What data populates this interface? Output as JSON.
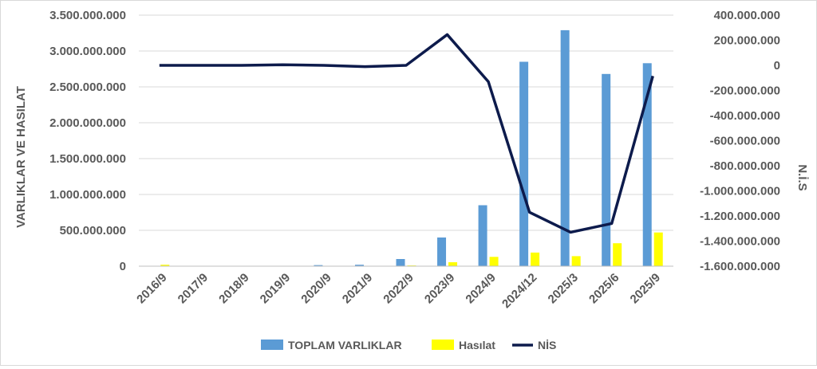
{
  "chart_data": {
    "type": "bar",
    "categories": [
      "2016/9",
      "2017/9",
      "2018/9",
      "2019/9",
      "2020/9",
      "2021/9",
      "2022/9",
      "2023/9",
      "2024/9",
      "2024/12",
      "2025/3",
      "2025/6",
      "2025/9"
    ],
    "series": [
      {
        "name": "TOPLAM VARLIKLAR",
        "type": "bar",
        "axis": "left",
        "color": "#5b9bd5",
        "values": [
          3000000,
          1000000,
          1000000,
          2000000,
          15000000,
          20000000,
          100000000,
          400000000,
          850000000,
          2850000000,
          3290000000,
          2680000000,
          2830000000
        ]
      },
      {
        "name": "Hasılat",
        "type": "bar",
        "axis": "left",
        "color": "#ffff00",
        "values": [
          20000000,
          2000000,
          2000000,
          3000000,
          5000000,
          5000000,
          10000000,
          55000000,
          130000000,
          190000000,
          140000000,
          320000000,
          470000000
        ]
      },
      {
        "name": "NİS",
        "type": "line",
        "axis": "right",
        "color": "#0d1b4c",
        "values": [
          0,
          0,
          0,
          5000000,
          0,
          -10000000,
          0,
          245000000,
          -130000000,
          -1170000000,
          -1330000000,
          -1260000000,
          -85000000
        ]
      }
    ],
    "y_left": {
      "label": "VARLIKLAR VE HASILAT",
      "min": 0,
      "max": 3500000000,
      "step": 500000000,
      "tick_labels": [
        "0",
        "500.000.000",
        "1.000.000.000",
        "1.500.000.000",
        "2.000.000.000",
        "2.500.000.000",
        "3.000.000.000",
        "3.500.000.000"
      ]
    },
    "y_right": {
      "label": "N.İ.S",
      "min": -1600000000,
      "max": 400000000,
      "step": 200000000,
      "tick_labels": [
        "-1.600.000.000",
        "-1.400.000.000",
        "-1.200.000.000",
        "-1.000.000.000",
        "-800.000.000",
        "-600.000.000",
        "-400.000.000",
        "-200.000.000",
        "0",
        "200.000.000",
        "400.000.000"
      ]
    },
    "xlabel": "",
    "grid": true,
    "legend": "bottom"
  }
}
